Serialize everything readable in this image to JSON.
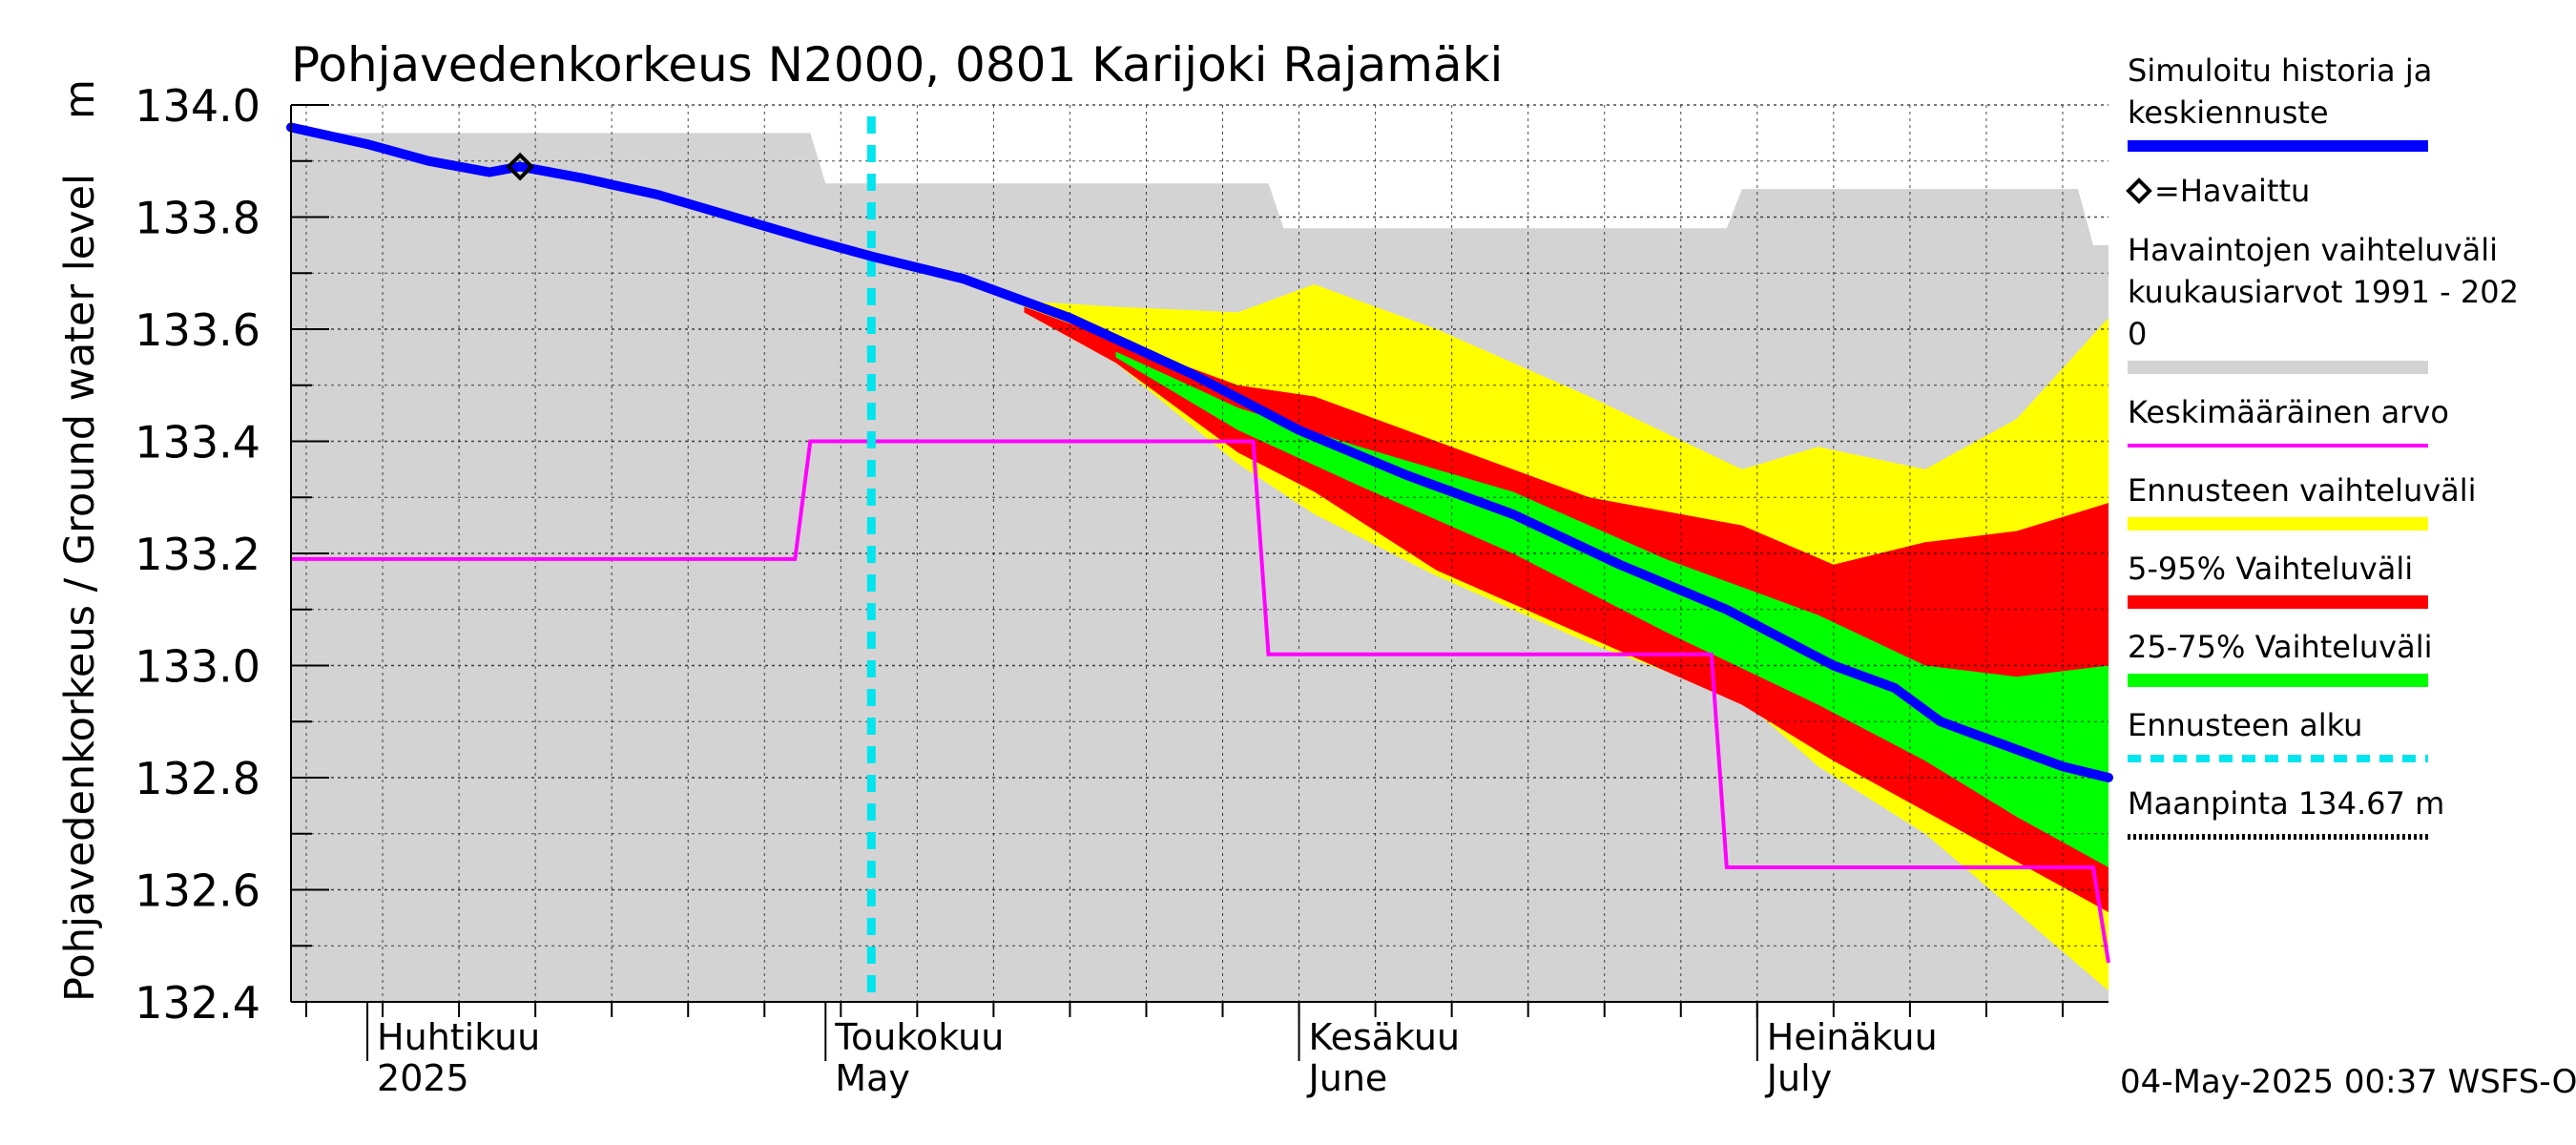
{
  "chart_data": {
    "type": "area",
    "title": "Pohjavedenkorkeus N2000, 0801 Karijoki Rajamäki",
    "ylabel": "Pohjavedenkorkeus / Ground water level",
    "yunit": "m",
    "ylim": [
      132.4,
      134.0
    ],
    "y_ticks": [
      "132.4",
      "132.6",
      "132.8",
      "133.0",
      "133.2",
      "133.4",
      "133.6",
      "133.8",
      "134.0"
    ],
    "xlim": [
      "2025-03-27",
      "2025-07-24"
    ],
    "grid": true,
    "month_labels": [
      {
        "fi": "Huhtikuu",
        "en": "2025",
        "date": "2025-04-01"
      },
      {
        "fi": "Toukokuu",
        "en": "May",
        "date": "2025-05-01"
      },
      {
        "fi": "Kesäkuu",
        "en": "June",
        "date": "2025-06-01"
      },
      {
        "fi": "Heinäkuu",
        "en": "July",
        "date": "2025-07-01"
      }
    ],
    "forecast_start": "2025-05-04",
    "observed": [
      {
        "x": "2025-04-11",
        "y": 133.89
      }
    ],
    "series": [
      {
        "name": "Havaintojen vaihteluväli kuukausiarvot 1991 - 2020",
        "color": "#d3d3d3",
        "kind": "band",
        "x": [
          "2025-03-27",
          "2025-04-30",
          "2025-05-01",
          "2025-05-30",
          "2025-05-31",
          "2025-06-29",
          "2025-06-30",
          "2025-07-22",
          "2025-07-23",
          "2025-07-24"
        ],
        "upper": [
          133.95,
          133.95,
          133.86,
          133.86,
          133.78,
          133.78,
          133.85,
          133.85,
          133.75,
          133.75
        ],
        "lower": [
          132.4,
          132.4,
          132.4,
          132.4,
          132.4,
          132.4,
          132.4,
          132.4,
          132.4,
          132.4
        ]
      },
      {
        "name": "Ennusteen vaihteluväli",
        "color": "#ffff00",
        "kind": "band",
        "x": [
          "2025-05-14",
          "2025-05-20",
          "2025-05-28",
          "2025-06-02",
          "2025-06-10",
          "2025-06-20",
          "2025-06-30",
          "2025-07-05",
          "2025-07-12",
          "2025-07-18",
          "2025-07-24"
        ],
        "upper": [
          133.65,
          133.64,
          133.63,
          133.68,
          133.6,
          133.48,
          133.35,
          133.39,
          133.35,
          133.44,
          133.62
        ],
        "lower": [
          133.63,
          133.54,
          133.36,
          133.27,
          133.16,
          133.04,
          132.94,
          132.82,
          132.7,
          132.56,
          132.42
        ]
      },
      {
        "name": "5-95% Vaihteluväli",
        "color": "#ff0000",
        "kind": "band",
        "x": [
          "2025-05-14",
          "2025-05-20",
          "2025-05-28",
          "2025-06-02",
          "2025-06-10",
          "2025-06-20",
          "2025-06-30",
          "2025-07-06",
          "2025-07-12",
          "2025-07-18",
          "2025-07-24"
        ],
        "upper": [
          133.64,
          133.58,
          133.5,
          133.48,
          133.4,
          133.3,
          133.25,
          133.18,
          133.22,
          133.24,
          133.29
        ],
        "lower": [
          133.63,
          133.54,
          133.38,
          133.31,
          133.17,
          133.05,
          132.93,
          132.83,
          132.74,
          132.65,
          132.56
        ]
      },
      {
        "name": "25-75% Vaihteluväli",
        "color": "#00ff00",
        "kind": "band",
        "x": [
          "2025-05-20",
          "2025-05-28",
          "2025-06-05",
          "2025-06-15",
          "2025-06-25",
          "2025-07-05",
          "2025-07-12",
          "2025-07-18",
          "2025-07-24"
        ],
        "upper": [
          133.56,
          133.46,
          133.39,
          133.31,
          133.19,
          133.09,
          133.0,
          132.98,
          133.0
        ],
        "lower": [
          133.55,
          133.42,
          133.32,
          133.2,
          133.06,
          132.93,
          132.83,
          132.73,
          132.64
        ]
      },
      {
        "name": "Simuloitu historia ja keskiennuste",
        "color": "#0000ff",
        "kind": "line",
        "x": [
          "2025-03-27",
          "2025-04-01",
          "2025-04-05",
          "2025-04-09",
          "2025-04-11",
          "2025-04-15",
          "2025-04-20",
          "2025-04-25",
          "2025-04-30",
          "2025-05-04",
          "2025-05-10",
          "2025-05-17",
          "2025-05-25",
          "2025-06-01",
          "2025-06-08",
          "2025-06-15",
          "2025-06-22",
          "2025-06-29",
          "2025-07-06",
          "2025-07-10",
          "2025-07-13",
          "2025-07-15",
          "2025-07-18",
          "2025-07-21",
          "2025-07-24"
        ],
        "y": [
          133.96,
          133.93,
          133.9,
          133.88,
          133.89,
          133.87,
          133.84,
          133.8,
          133.76,
          133.73,
          133.69,
          133.62,
          133.52,
          133.42,
          133.34,
          133.27,
          133.18,
          133.1,
          133.0,
          132.96,
          132.9,
          132.88,
          132.85,
          132.82,
          132.8
        ]
      },
      {
        "name": "Keskimääräinen arvo",
        "color": "#ff00ff",
        "kind": "step",
        "x": [
          "2025-03-27",
          "2025-04-29",
          "2025-04-30",
          "2025-05-29",
          "2025-05-30",
          "2025-06-28",
          "2025-06-29",
          "2025-07-23",
          "2025-07-24"
        ],
        "y": [
          133.19,
          133.19,
          133.4,
          133.4,
          133.02,
          133.02,
          132.64,
          132.64,
          132.47
        ]
      }
    ],
    "legend": {
      "position": "right",
      "entries": [
        {
          "label_lines": [
            "Simuloitu historia ja",
            "keskiennuste"
          ],
          "color": "#0000ff",
          "style": "line"
        },
        {
          "label_lines": [
            "=Havaittu"
          ],
          "color": "#000000",
          "style": "marker"
        },
        {
          "label_lines": [
            "Havaintojen vaihteluväli",
            " kuukausiarvot 1991 - 202",
            "0"
          ],
          "color": "#d3d3d3",
          "style": "band"
        },
        {
          "label_lines": [
            "Keskimääräinen arvo"
          ],
          "color": "#ff00ff",
          "style": "thin"
        },
        {
          "label_lines": [
            "Ennusteen vaihteluväli"
          ],
          "color": "#ffff00",
          "style": "band"
        },
        {
          "label_lines": [
            "5-95% Vaihteluväli"
          ],
          "color": "#ff0000",
          "style": "band"
        },
        {
          "label_lines": [
            "25-75% Vaihteluväli"
          ],
          "color": "#00ff00",
          "style": "band"
        },
        {
          "label_lines": [
            "Ennusteen alku"
          ],
          "color": "#00e5ee",
          "style": "dashed"
        },
        {
          "label_lines": [
            "Maanpinta 134.67 m"
          ],
          "color": "#000000",
          "style": "dotted"
        }
      ]
    },
    "footer": "04-May-2025 00:37 WSFS-O"
  }
}
